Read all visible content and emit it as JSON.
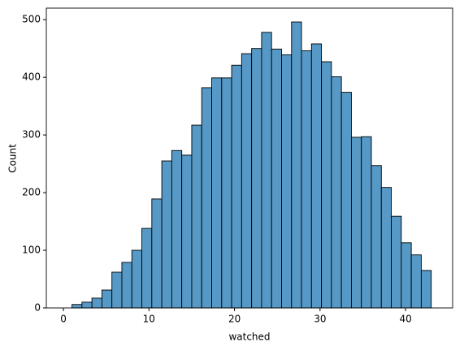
{
  "chart_data": {
    "type": "histogram",
    "xlabel": "watched",
    "ylabel": "Count",
    "bins": [
      1,
      2.167,
      3.333,
      4.5,
      5.667,
      6.833,
      8,
      9.167,
      10.333,
      11.5,
      12.667,
      13.833,
      15,
      16.167,
      17.333,
      18.5,
      19.667,
      20.833,
      22,
      23.167,
      24.333,
      25.5,
      26.667,
      27.833,
      29,
      30.167,
      31.333,
      32.5,
      33.667,
      34.833,
      36,
      37.167,
      38.333,
      39.5,
      40.667,
      41.833,
      43
    ],
    "values": [
      6,
      10,
      17,
      31,
      62,
      79,
      100,
      138,
      189,
      255,
      273,
      265,
      317,
      382,
      399,
      399,
      421,
      441,
      450,
      478,
      449,
      439,
      496,
      446,
      458,
      427,
      401,
      374,
      296,
      297,
      247,
      209,
      159,
      113,
      92,
      65
    ],
    "color": "#5799c6",
    "xlim": [
      -2,
      45.5
    ],
    "xticks": [
      0,
      10,
      20,
      30,
      40
    ],
    "ylim": [
      0,
      520
    ],
    "yticks": [
      0,
      100,
      200,
      300,
      400,
      500
    ],
    "grid": false
  }
}
